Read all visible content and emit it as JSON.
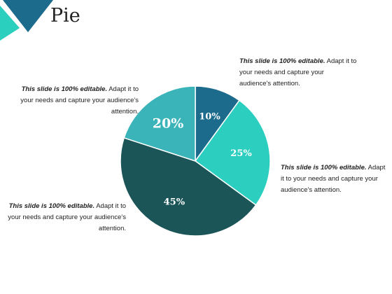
{
  "slide": {
    "title": "Pie",
    "accent_colors": [
      "#1c6b8c",
      "#2bcfbe",
      "#1b5558",
      "#3ab3b8"
    ]
  },
  "chart_data": {
    "type": "pie",
    "title": "Pie",
    "slices": [
      {
        "label": "10%",
        "value": 10,
        "color": "#1c6b8c"
      },
      {
        "label": "25%",
        "value": 25,
        "color": "#2ccfbf"
      },
      {
        "label": "45%",
        "value": 45,
        "color": "#1b5558"
      },
      {
        "label": "20%",
        "value": 20,
        "color": "#3ab4b9"
      }
    ],
    "start_angle_deg": 0,
    "direction": "clockwise"
  },
  "annotations": [
    {
      "id": "tr",
      "bold": "This slide is 100% editable.",
      "text": " Adapt it to your needs and capture your audience's attention."
    },
    {
      "id": "r",
      "bold": "This slide is 100% editable.",
      "text": " Adapt it to your needs and capture your audience's attention."
    },
    {
      "id": "tl",
      "bold": "This slide is 100% editable.",
      "text": " Adapt it to your needs and capture your audience's attention."
    },
    {
      "id": "bl",
      "bold": "This slide is 100% editable.",
      "text": " Adapt it to your needs and capture your audience's attention."
    }
  ]
}
